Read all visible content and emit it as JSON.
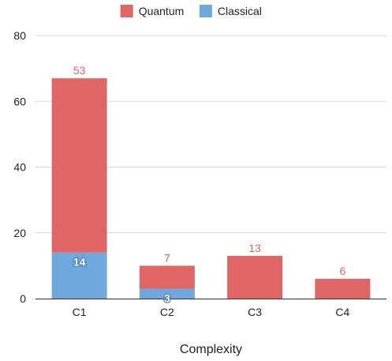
{
  "chart_data": {
    "type": "bar",
    "stacked": true,
    "categories": [
      "C1",
      "C2",
      "C3",
      "C4"
    ],
    "series": [
      {
        "name": "Classical",
        "values": [
          14,
          3,
          0,
          0
        ],
        "color": "#6fa8dc"
      },
      {
        "name": "Quantum",
        "values": [
          53,
          7,
          13,
          6
        ],
        "color": "#e06666"
      }
    ],
    "legend_order": [
      "Quantum",
      "Classical"
    ],
    "legend_position": "top-center",
    "title": "",
    "xlabel": "Complexity",
    "ylabel": "",
    "ylim": [
      0,
      80
    ],
    "yticks": [
      0,
      20,
      40,
      60,
      80
    ],
    "grid": true,
    "data_labels": {
      "Quantum": [
        "53",
        "7",
        "13",
        "6"
      ],
      "Classical": [
        "14",
        "3",
        "",
        ""
      ]
    },
    "colors": {
      "quantum": "#e06666",
      "classical": "#6fa8dc",
      "grid": "#d9d9d9",
      "axis": "#333333",
      "quantum_label": "#e06666"
    }
  }
}
